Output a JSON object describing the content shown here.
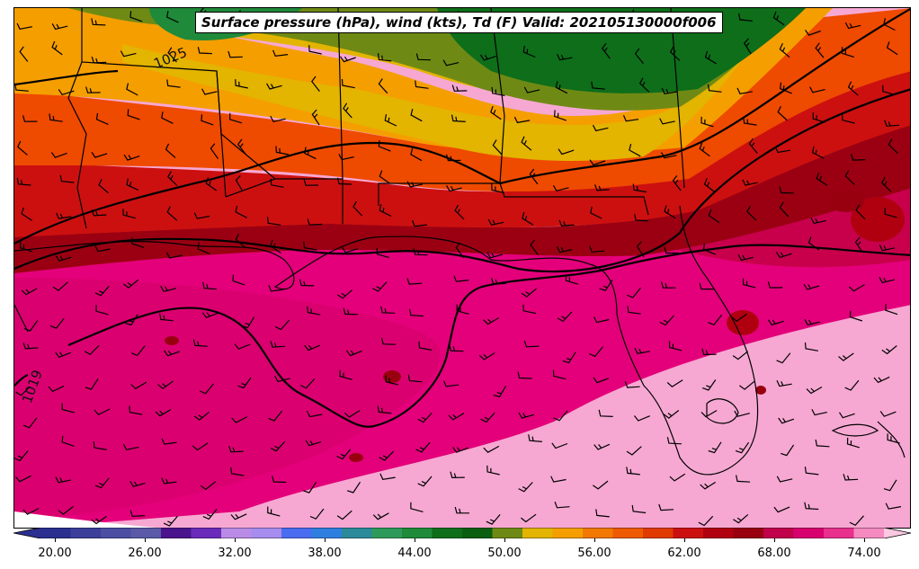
{
  "title": "Surface pressure (hPa), wind (kts), Td (F) Valid: 202105130000f006",
  "contour_labels": [
    {
      "text": "1025"
    },
    {
      "text": "1019"
    }
  ],
  "colorbar": {
    "tick_labels": [
      "20.00",
      "26.00",
      "32.00",
      "38.00",
      "44.00",
      "50.00",
      "56.00",
      "62.00",
      "68.00",
      "74.00"
    ],
    "colors": [
      "#2b2f8f",
      "#3c3f99",
      "#4b4ea3",
      "#5a5aa8",
      "#4a148c",
      "#6a2bbb",
      "#b98be6",
      "#a78cf0",
      "#4a6cf0",
      "#2f7fe0",
      "#2a8a9a",
      "#2e9a5a",
      "#1f8a3a",
      "#0e6e1a",
      "#0a5e10",
      "#6f8a14",
      "#e3b400",
      "#f59e00",
      "#f27800",
      "#ee5a00",
      "#e03a00",
      "#cc1010",
      "#b00010",
      "#980010",
      "#c0004a",
      "#d8006e",
      "#e8308c",
      "#f58ac0"
    ]
  }
}
